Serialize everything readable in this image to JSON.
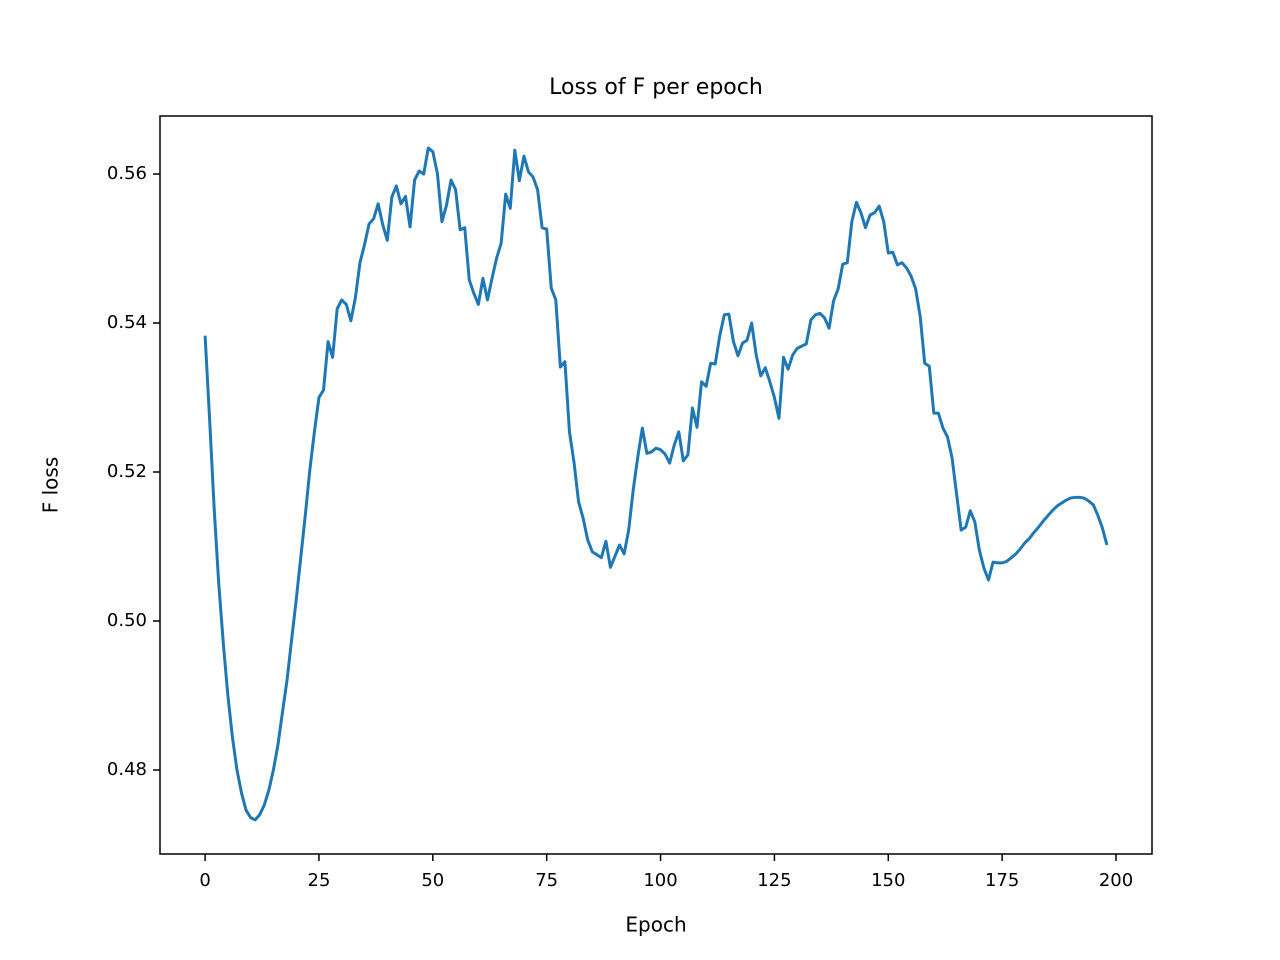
{
  "chart_data": {
    "type": "line",
    "title": "Loss of F per epoch",
    "x_label": "Epoch",
    "y_label": "F loss",
    "color": "#1f77b4",
    "x": [
      0,
      1,
      2,
      3,
      4,
      5,
      6,
      7,
      8,
      9,
      10,
      11,
      12,
      13,
      14,
      15,
      16,
      17,
      18,
      19,
      20,
      21,
      22,
      23,
      24,
      25,
      26,
      27,
      28,
      29,
      30,
      31,
      32,
      33,
      34,
      35,
      36,
      37,
      38,
      39,
      40,
      41,
      42,
      43,
      44,
      45,
      46,
      47,
      48,
      49,
      50,
      51,
      52,
      53,
      54,
      55,
      56,
      57,
      58,
      59,
      60,
      61,
      62,
      63,
      64,
      65,
      66,
      67,
      68,
      69,
      70,
      71,
      72,
      73,
      74,
      75,
      76,
      77,
      78,
      79,
      80,
      81,
      82,
      83,
      84,
      85,
      86,
      87,
      88,
      89,
      90,
      91,
      92,
      93,
      94,
      95,
      96,
      97,
      98,
      99,
      100,
      101,
      102,
      103,
      104,
      105,
      106,
      107,
      108,
      109,
      110,
      111,
      112,
      113,
      114,
      115,
      116,
      117,
      118,
      119,
      120,
      121,
      122,
      123,
      124,
      125,
      126,
      127,
      128,
      129,
      130,
      131,
      132,
      133,
      134,
      135,
      136,
      137,
      138,
      139,
      140,
      141,
      142,
      143,
      144,
      145,
      146,
      147,
      148,
      149,
      150,
      151,
      152,
      153,
      154,
      155,
      156,
      157,
      158,
      159,
      160,
      161,
      162,
      163,
      164,
      165,
      166,
      167,
      168,
      169,
      170,
      171,
      172,
      173,
      174,
      175,
      176,
      177,
      178,
      179,
      180,
      181,
      182,
      183,
      184,
      185,
      186,
      187,
      188,
      189,
      190,
      191,
      192,
      193,
      194,
      195,
      196,
      197,
      198
    ],
    "values": [
      0.5383,
      0.527,
      0.515,
      0.505,
      0.497,
      0.49,
      0.4844,
      0.48,
      0.4769,
      0.4746,
      0.4736,
      0.4733,
      0.474,
      0.4753,
      0.4773,
      0.48,
      0.4834,
      0.4878,
      0.4921,
      0.4975,
      0.5028,
      0.5085,
      0.5142,
      0.5203,
      0.5254,
      0.53,
      0.531,
      0.5375,
      0.5354,
      0.5419,
      0.5431,
      0.5425,
      0.5403,
      0.5434,
      0.5481,
      0.5505,
      0.5533,
      0.554,
      0.556,
      0.5532,
      0.5511,
      0.5569,
      0.5584,
      0.556,
      0.557,
      0.5529,
      0.5592,
      0.5604,
      0.56,
      0.5635,
      0.563,
      0.5601,
      0.5536,
      0.5558,
      0.5592,
      0.5579,
      0.5525,
      0.5528,
      0.5458,
      0.544,
      0.5425,
      0.546,
      0.5431,
      0.546,
      0.5487,
      0.5507,
      0.5573,
      0.5554,
      0.5632,
      0.5591,
      0.5624,
      0.5603,
      0.5596,
      0.5579,
      0.5528,
      0.5526,
      0.5447,
      0.5431,
      0.5341,
      0.5348,
      0.5254,
      0.5213,
      0.516,
      0.5138,
      0.5109,
      0.5093,
      0.5089,
      0.5085,
      0.5107,
      0.5072,
      0.5087,
      0.5102,
      0.509,
      0.5122,
      0.5176,
      0.522,
      0.5259,
      0.5225,
      0.5227,
      0.5232,
      0.523,
      0.5224,
      0.5212,
      0.5236,
      0.5254,
      0.5215,
      0.5223,
      0.5286,
      0.526,
      0.5321,
      0.5315,
      0.5346,
      0.5345,
      0.5383,
      0.5411,
      0.5412,
      0.5375,
      0.5356,
      0.5373,
      0.5377,
      0.54,
      0.5357,
      0.5329,
      0.534,
      0.5321,
      0.53,
      0.5272,
      0.5354,
      0.5338,
      0.5357,
      0.5366,
      0.5369,
      0.5372,
      0.5404,
      0.5411,
      0.5413,
      0.5407,
      0.5393,
      0.543,
      0.5446,
      0.5479,
      0.5481,
      0.5536,
      0.5562,
      0.5548,
      0.5528,
      0.5545,
      0.5548,
      0.5557,
      0.5536,
      0.5494,
      0.5495,
      0.5478,
      0.5481,
      0.5474,
      0.5463,
      0.5446,
      0.5409,
      0.5346,
      0.5342,
      0.5279,
      0.5279,
      0.5259,
      0.5247,
      0.5219,
      0.517,
      0.5122,
      0.5126,
      0.5148,
      0.5133,
      0.5095,
      0.5071,
      0.5055,
      0.5079,
      0.5078,
      0.5078,
      0.508,
      0.5085,
      0.509,
      0.5097,
      0.5105,
      0.5111,
      0.5119,
      0.5126,
      0.5134,
      0.5141,
      0.5148,
      0.5154,
      0.5158,
      0.5162,
      0.5165,
      0.5166,
      0.5166,
      0.5165,
      0.5161,
      0.5156,
      0.5142,
      0.5125,
      0.5102
    ],
    "xlim": [
      -9.9,
      207.9
    ],
    "xticks": [
      0,
      25,
      50,
      75,
      100,
      125,
      150,
      175,
      200
    ],
    "ylim": [
      0.46872,
      0.56779
    ],
    "yticks": [
      0.48,
      {
        "value": 0.5,
        "label": "0.50"
      },
      0.52,
      0.54,
      0.56
    ]
  }
}
